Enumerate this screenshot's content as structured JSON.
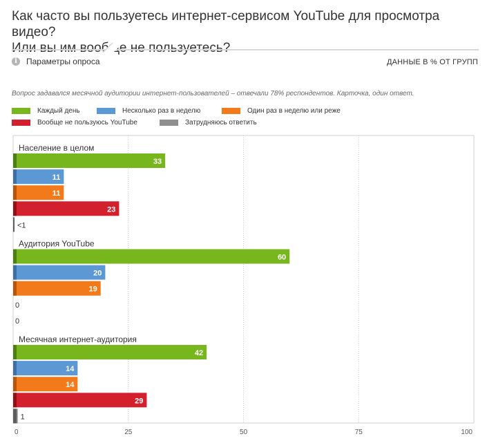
{
  "title": {
    "line1": "Как часто вы пользуетесь интернет-сервисом YouTube для просмотра видео?",
    "line2": "Или вы им вообще не пользуетесь?"
  },
  "params_label": "Параметры опроса",
  "data_note": "ДАННЫЕ В % ОТ ГРУПП",
  "question_note": "Вопрос задавался месячной аудитории интернет-пользователей – отвечали 78% респондентов. Карточка, один ответ.",
  "icons": {
    "info": "info-icon"
  },
  "chart_data": {
    "type": "bar",
    "orientation": "horizontal",
    "xlim": [
      0,
      100
    ],
    "xticks": [
      0,
      25,
      50,
      75,
      100
    ],
    "grid": true,
    "legend_position": "top",
    "series": [
      {
        "name": "Каждый день",
        "color": "#77b71d",
        "dark": "#4e7e11"
      },
      {
        "name": "Несколько раз в неделю",
        "color": "#5c98d4",
        "dark": "#3d6fa3"
      },
      {
        "name": "Один раз в неделю или реже",
        "color": "#f27a1a",
        "dark": "#b9550a"
      },
      {
        "name": "Вообще не пользуюсь YouTube",
        "color": "#d2202f",
        "dark": "#931019"
      },
      {
        "name": "Затрудняюсь ответить",
        "color": "#8f8f8f",
        "dark": "#5e5e5e"
      }
    ],
    "groups": [
      {
        "name": "Население в целом",
        "values": [
          33,
          11,
          11,
          23,
          0.3
        ],
        "labels": [
          "33",
          "11",
          "11",
          "23",
          "<1"
        ]
      },
      {
        "name": "Аудитория YouTube",
        "values": [
          60,
          20,
          19,
          0,
          0
        ],
        "labels": [
          "60",
          "20",
          "19",
          "0",
          "0"
        ]
      },
      {
        "name": "Месячная интернет-аудитория",
        "values": [
          42,
          14,
          14,
          29,
          1
        ],
        "labels": [
          "42",
          "14",
          "14",
          "29",
          "1"
        ]
      }
    ]
  }
}
